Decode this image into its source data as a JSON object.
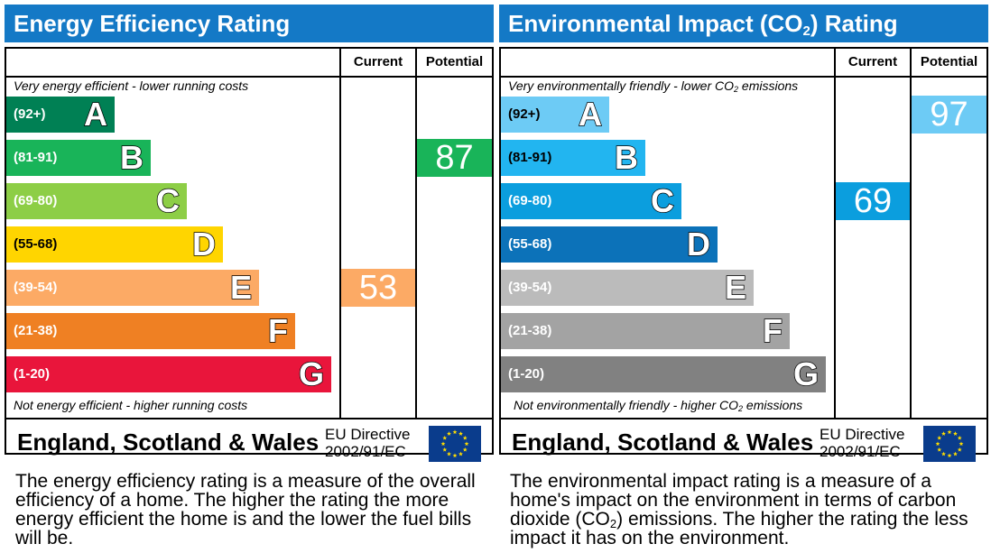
{
  "chart_data": [
    {
      "type": "bar",
      "title": "Energy Efficiency Rating",
      "column_headers": [
        "Current",
        "Potential"
      ],
      "top_caption": "Very energy efficient - lower running costs",
      "bottom_caption": "Not energy efficient - higher running costs",
      "bands": [
        {
          "letter": "A",
          "range": "(92+)",
          "color": "#008054"
        },
        {
          "letter": "B",
          "range": "(81-91)",
          "color": "#19b459"
        },
        {
          "letter": "C",
          "range": "(69-80)",
          "color": "#8dce46"
        },
        {
          "letter": "D",
          "range": "(55-68)",
          "color": "#ffd500"
        },
        {
          "letter": "E",
          "range": "(39-54)",
          "color": "#fcaa65"
        },
        {
          "letter": "F",
          "range": "(21-38)",
          "color": "#ef8023"
        },
        {
          "letter": "G",
          "range": "(1-20)",
          "color": "#e9153b"
        }
      ],
      "current": {
        "value": 53,
        "band": "E",
        "color": "#fcaa65"
      },
      "potential": {
        "value": 87,
        "band": "B",
        "color": "#19b459"
      },
      "footer_region": "England, Scotland & Wales",
      "footer_directive": [
        "EU Directive",
        "2002/91/EC"
      ],
      "description": "The energy efficiency rating is a measure of the overall efficiency of a home. The higher the rating the more energy efficient the home is and the lower the fuel bills will be."
    },
    {
      "type": "bar",
      "title": "Environmental Impact (CO2) Rating",
      "column_headers": [
        "Current",
        "Potential"
      ],
      "top_caption": "Very environmentally friendly - lower CO2 emissions",
      "bottom_caption": "Not environmentally friendly - higher CO2 emissions",
      "bands": [
        {
          "letter": "A",
          "range": "(92+)",
          "color": "#6dcbf5"
        },
        {
          "letter": "B",
          "range": "(81-91)",
          "color": "#22b5f0"
        },
        {
          "letter": "C",
          "range": "(69-80)",
          "color": "#0b9ede"
        },
        {
          "letter": "D",
          "range": "(55-68)",
          "color": "#0c72b9"
        },
        {
          "letter": "E",
          "range": "(39-54)",
          "color": "#bbbbbb"
        },
        {
          "letter": "F",
          "range": "(21-38)",
          "color": "#a3a3a3"
        },
        {
          "letter": "G",
          "range": "(1-20)",
          "color": "#818181"
        }
      ],
      "current": {
        "value": 69,
        "band": "C",
        "color": "#0b9ede"
      },
      "potential": {
        "value": 97,
        "band": "A",
        "color": "#6dcbf5"
      },
      "footer_region": "England, Scotland & Wales",
      "footer_directive": [
        "EU Directive",
        "2002/91/EC"
      ],
      "description": "The environmental impact rating is a measure of a home's impact on the environment in terms of carbon dioxide (CO2) emissions. The higher the rating the less impact it has on the environment."
    }
  ]
}
